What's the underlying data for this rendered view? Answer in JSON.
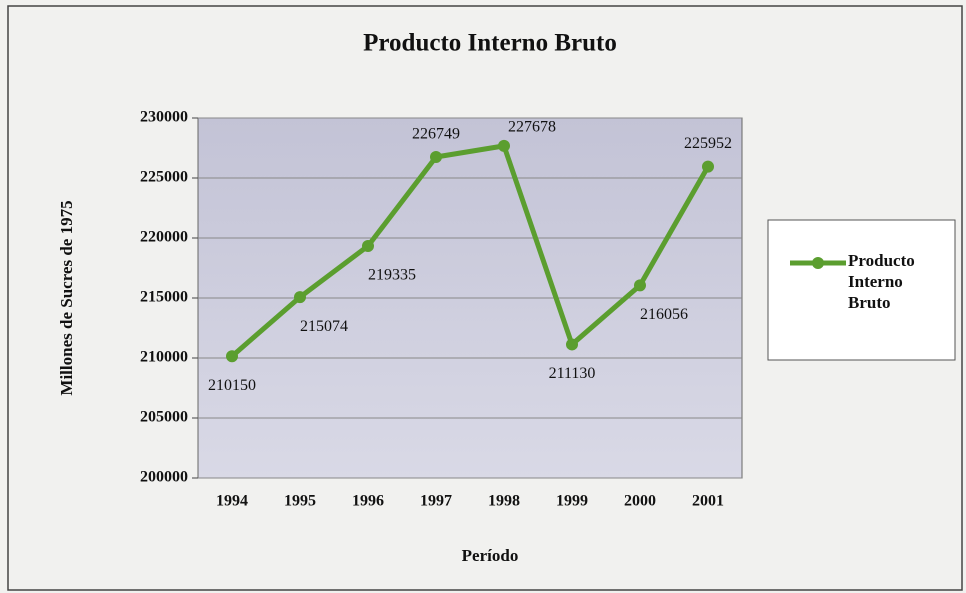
{
  "chart_data": {
    "type": "line",
    "title": "Producto Interno Bruto",
    "x_label": "Período",
    "y_label": "Millones de Sucres de 1975",
    "categories": [
      "1994",
      "1995",
      "1996",
      "1997",
      "1998",
      "1999",
      "2000",
      "2001"
    ],
    "series": [
      {
        "name": "Producto Interno Bruto",
        "color": "#5b9e2f",
        "values": [
          210150,
          215074,
          219335,
          226749,
          227678,
          211130,
          216056,
          225952
        ]
      }
    ],
    "ylim": [
      200000,
      230000
    ],
    "yticks": [
      200000,
      205000,
      210000,
      215000,
      220000,
      225000,
      230000
    ],
    "grid": true,
    "legend": "right"
  }
}
